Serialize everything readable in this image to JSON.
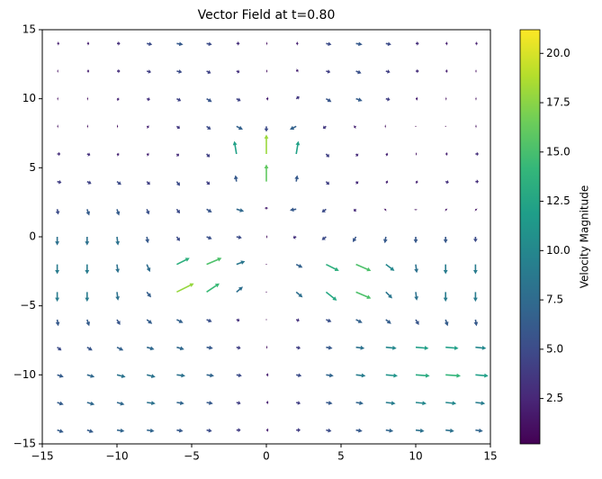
{
  "chart_data": {
    "type": "quiver",
    "title": "Vector Field at t=0.80",
    "xlim": [
      -15,
      15
    ],
    "ylim": [
      -15,
      15
    ],
    "xticks": [
      {
        "value": -15,
        "label": "−15"
      },
      {
        "value": -10,
        "label": "−10"
      },
      {
        "value": -5,
        "label": "−5"
      },
      0,
      5,
      10,
      15
    ],
    "yticks": [
      {
        "value": -15,
        "label": "−15"
      },
      {
        "value": -10,
        "label": "−10"
      },
      {
        "value": -5,
        "label": "−5"
      },
      0,
      5,
      10,
      15
    ],
    "x": [
      -14,
      -12,
      -10,
      -8,
      -6,
      -4,
      -2,
      0,
      2,
      4,
      6,
      8,
      10,
      12,
      14
    ],
    "y": [
      14,
      12,
      10,
      8,
      6,
      4,
      2,
      0,
      -2,
      -4,
      -6,
      -8,
      -10,
      -12,
      -14
    ],
    "u": [
      [
        2,
        2,
        3,
        5,
        6,
        5,
        3,
        1,
        2,
        5,
        6,
        5,
        3,
        2,
        2
      ],
      [
        1,
        2,
        3,
        4,
        5,
        4,
        3,
        1,
        2,
        4,
        5,
        4,
        3,
        2,
        1
      ],
      [
        1,
        1,
        2,
        3,
        4,
        5,
        4,
        2,
        3,
        5,
        6,
        4,
        2,
        1,
        1
      ],
      [
        1,
        1,
        1,
        2,
        3,
        4,
        6,
        0,
        -6,
        -3,
        -2,
        -1,
        0,
        0,
        1
      ],
      [
        3,
        3,
        2,
        2,
        2,
        3,
        -2,
        0,
        2,
        3,
        2,
        2,
        1,
        2,
        3
      ],
      [
        4,
        4,
        4,
        3,
        3,
        3,
        -1,
        0,
        1,
        3,
        2,
        2,
        2,
        3,
        3
      ],
      [
        1,
        2,
        2,
        2,
        3,
        5,
        7,
        0,
        -6,
        -4,
        -2,
        -1,
        0,
        1,
        1
      ],
      [
        0,
        0,
        1,
        1,
        3,
        5,
        5,
        1,
        -3,
        -4,
        -3,
        -1,
        0,
        0,
        0
      ],
      [
        0,
        0,
        1,
        3,
        12,
        14,
        8,
        0,
        6,
        12,
        14,
        8,
        1,
        0,
        0
      ],
      [
        0,
        0,
        1,
        4,
        16,
        12,
        6,
        0,
        6,
        10,
        14,
        6,
        1,
        0,
        0
      ],
      [
        1,
        2,
        3,
        5,
        6,
        5,
        3,
        0,
        3,
        5,
        6,
        5,
        3,
        2,
        1
      ],
      [
        4,
        5,
        6,
        7,
        7,
        6,
        4,
        1,
        4,
        6,
        8,
        10,
        12,
        12,
        10
      ],
      [
        6,
        7,
        8,
        8,
        8,
        7,
        5,
        2,
        5,
        7,
        9,
        11,
        13,
        14,
        12
      ],
      [
        6,
        7,
        7,
        8,
        7,
        6,
        4,
        2,
        4,
        6,
        7,
        9,
        10,
        10,
        9
      ],
      [
        6,
        6,
        7,
        7,
        6,
        5,
        4,
        2,
        4,
        5,
        6,
        7,
        8,
        8,
        7
      ]
    ],
    "v": [
      [
        0,
        0,
        0,
        -1,
        -1,
        -1,
        0,
        0,
        0,
        -1,
        -1,
        -1,
        0,
        0,
        0
      ],
      [
        0,
        0,
        0,
        -1,
        -1,
        -2,
        -1,
        0,
        1,
        -1,
        -2,
        -1,
        0,
        0,
        0
      ],
      [
        0,
        0,
        -1,
        -1,
        -2,
        -3,
        -2,
        0,
        2,
        -3,
        -2,
        -1,
        0,
        0,
        0
      ],
      [
        0,
        0,
        0,
        -1,
        -2,
        -3,
        -3,
        -5,
        -3,
        -2,
        -1,
        0,
        0,
        0,
        0
      ],
      [
        0,
        -1,
        -1,
        -1,
        -2,
        -3,
        12,
        18,
        12,
        -3,
        -2,
        -1,
        0,
        0,
        0
      ],
      [
        -1,
        -2,
        -3,
        -3,
        -4,
        -3,
        6,
        16,
        6,
        -3,
        -2,
        -1,
        -1,
        -1,
        0
      ],
      [
        -5,
        -6,
        -6,
        -5,
        -4,
        -3,
        -2,
        2,
        -1,
        -3,
        -2,
        -1,
        -1,
        -1,
        -1
      ],
      [
        -8,
        -8,
        -8,
        -6,
        -4,
        -2,
        -1,
        0,
        -1,
        -3,
        -5,
        -6,
        -6,
        -6,
        -5
      ],
      [
        -9,
        -9,
        -8,
        -7,
        6,
        6,
        3,
        0,
        -3,
        -6,
        -6,
        -6,
        -8,
        -9,
        -9
      ],
      [
        -9,
        -9,
        -8,
        -5,
        8,
        8,
        5,
        0,
        -5,
        -8,
        -6,
        -6,
        -8,
        -9,
        -9
      ],
      [
        -6,
        -6,
        -5,
        -4,
        -3,
        -2,
        -1,
        0,
        -1,
        -2,
        -3,
        -4,
        -5,
        -6,
        -6
      ],
      [
        -3,
        -3,
        -3,
        -2,
        -2,
        -1,
        -1,
        0,
        -1,
        -1,
        -1,
        -1,
        -1,
        -1,
        -1
      ],
      [
        -2,
        -2,
        -2,
        -2,
        -1,
        -1,
        -1,
        0,
        -1,
        -1,
        -1,
        -1,
        -1,
        -1,
        -1
      ],
      [
        -2,
        -2,
        -2,
        -1,
        -1,
        -1,
        -1,
        0,
        -1,
        -1,
        -1,
        -1,
        -1,
        -1,
        -1
      ],
      [
        -2,
        -2,
        -1,
        -1,
        -1,
        -1,
        0,
        0,
        0,
        -1,
        -1,
        -1,
        -1,
        -1,
        -1
      ]
    ],
    "colormap": "viridis",
    "colorbar": {
      "label": "Velocity Magnitude",
      "lim": [
        0.2,
        21.2
      ],
      "ticks": [
        {
          "value": 2.5,
          "label": "2.5"
        },
        {
          "value": 5,
          "label": "5.0"
        },
        {
          "value": 7.5,
          "label": "7.5"
        },
        {
          "value": 10,
          "label": "10.0"
        },
        {
          "value": 12.5,
          "label": "12.5"
        },
        {
          "value": 15,
          "label": "15.0"
        },
        {
          "value": 17.5,
          "label": "17.5"
        },
        {
          "value": 20,
          "label": "20.0"
        }
      ]
    }
  }
}
